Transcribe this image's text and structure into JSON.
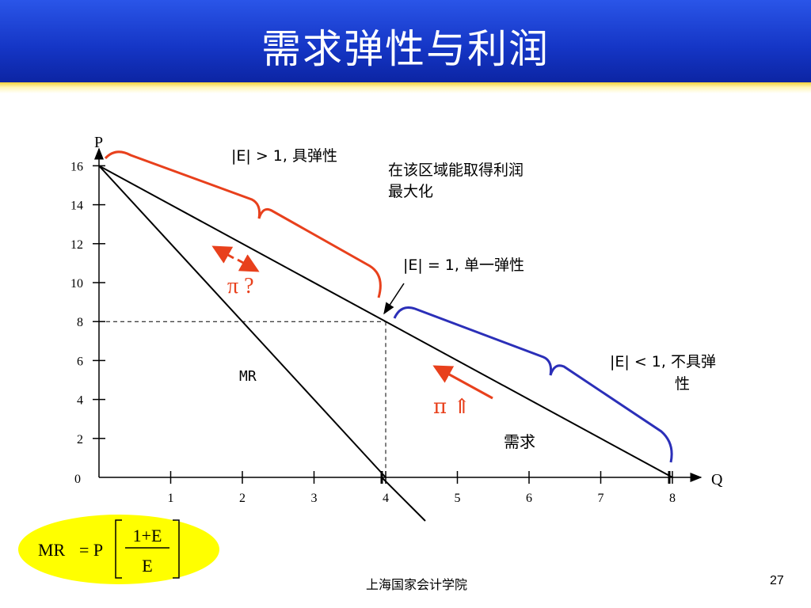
{
  "slide": {
    "title": "需求弹性与利润",
    "footer": "上海国家会计学院",
    "page_number": "27"
  },
  "chart": {
    "p_axis_label": "P",
    "q_axis_label": "Q",
    "origin_label": "0",
    "y_ticks": [
      "2",
      "4",
      "6",
      "8",
      "10",
      "12",
      "14",
      "16"
    ],
    "x_ticks": [
      "1",
      "2",
      "3",
      "4",
      "5",
      "6",
      "7",
      "8"
    ],
    "mr_label": "MR",
    "demand_label": "需求",
    "elastic_label": "|E| > 1, 具弹性",
    "profit_max_line1": "在该区域能取得利润",
    "profit_max_line2": "最大化",
    "unit_elastic_label": "|E| = 1, 单一弹性",
    "inelastic_line1": "|E| < 1, 不具弹",
    "inelastic_line2": "性",
    "pi_question": "π ?",
    "pi_up": "π ⇑",
    "colors": {
      "elastic": "#e8401c",
      "inelastic": "#2b2fb8",
      "arrow": "#e8401c",
      "formula_bg": "#ffff00"
    }
  },
  "chart_data": {
    "type": "line",
    "xlabel": "Q",
    "ylabel": "P",
    "xlim": [
      0,
      8
    ],
    "ylim": [
      0,
      16
    ],
    "x_ticks": [
      1,
      2,
      3,
      4,
      5,
      6,
      7,
      8
    ],
    "y_ticks": [
      2,
      4,
      6,
      8,
      10,
      12,
      14,
      16
    ],
    "series": [
      {
        "name": "需求",
        "points": [
          [
            0,
            16
          ],
          [
            8,
            0
          ]
        ]
      },
      {
        "name": "MR",
        "points": [
          [
            0,
            16
          ],
          [
            4,
            0
          ]
        ]
      }
    ],
    "annotations": [
      {
        "label": "|E| = 1, 单一弹性",
        "x": 4,
        "y": 8
      }
    ]
  },
  "formula": {
    "lhs": "MR",
    "eq": "= P",
    "numerator": "1+E",
    "denominator": "E"
  }
}
